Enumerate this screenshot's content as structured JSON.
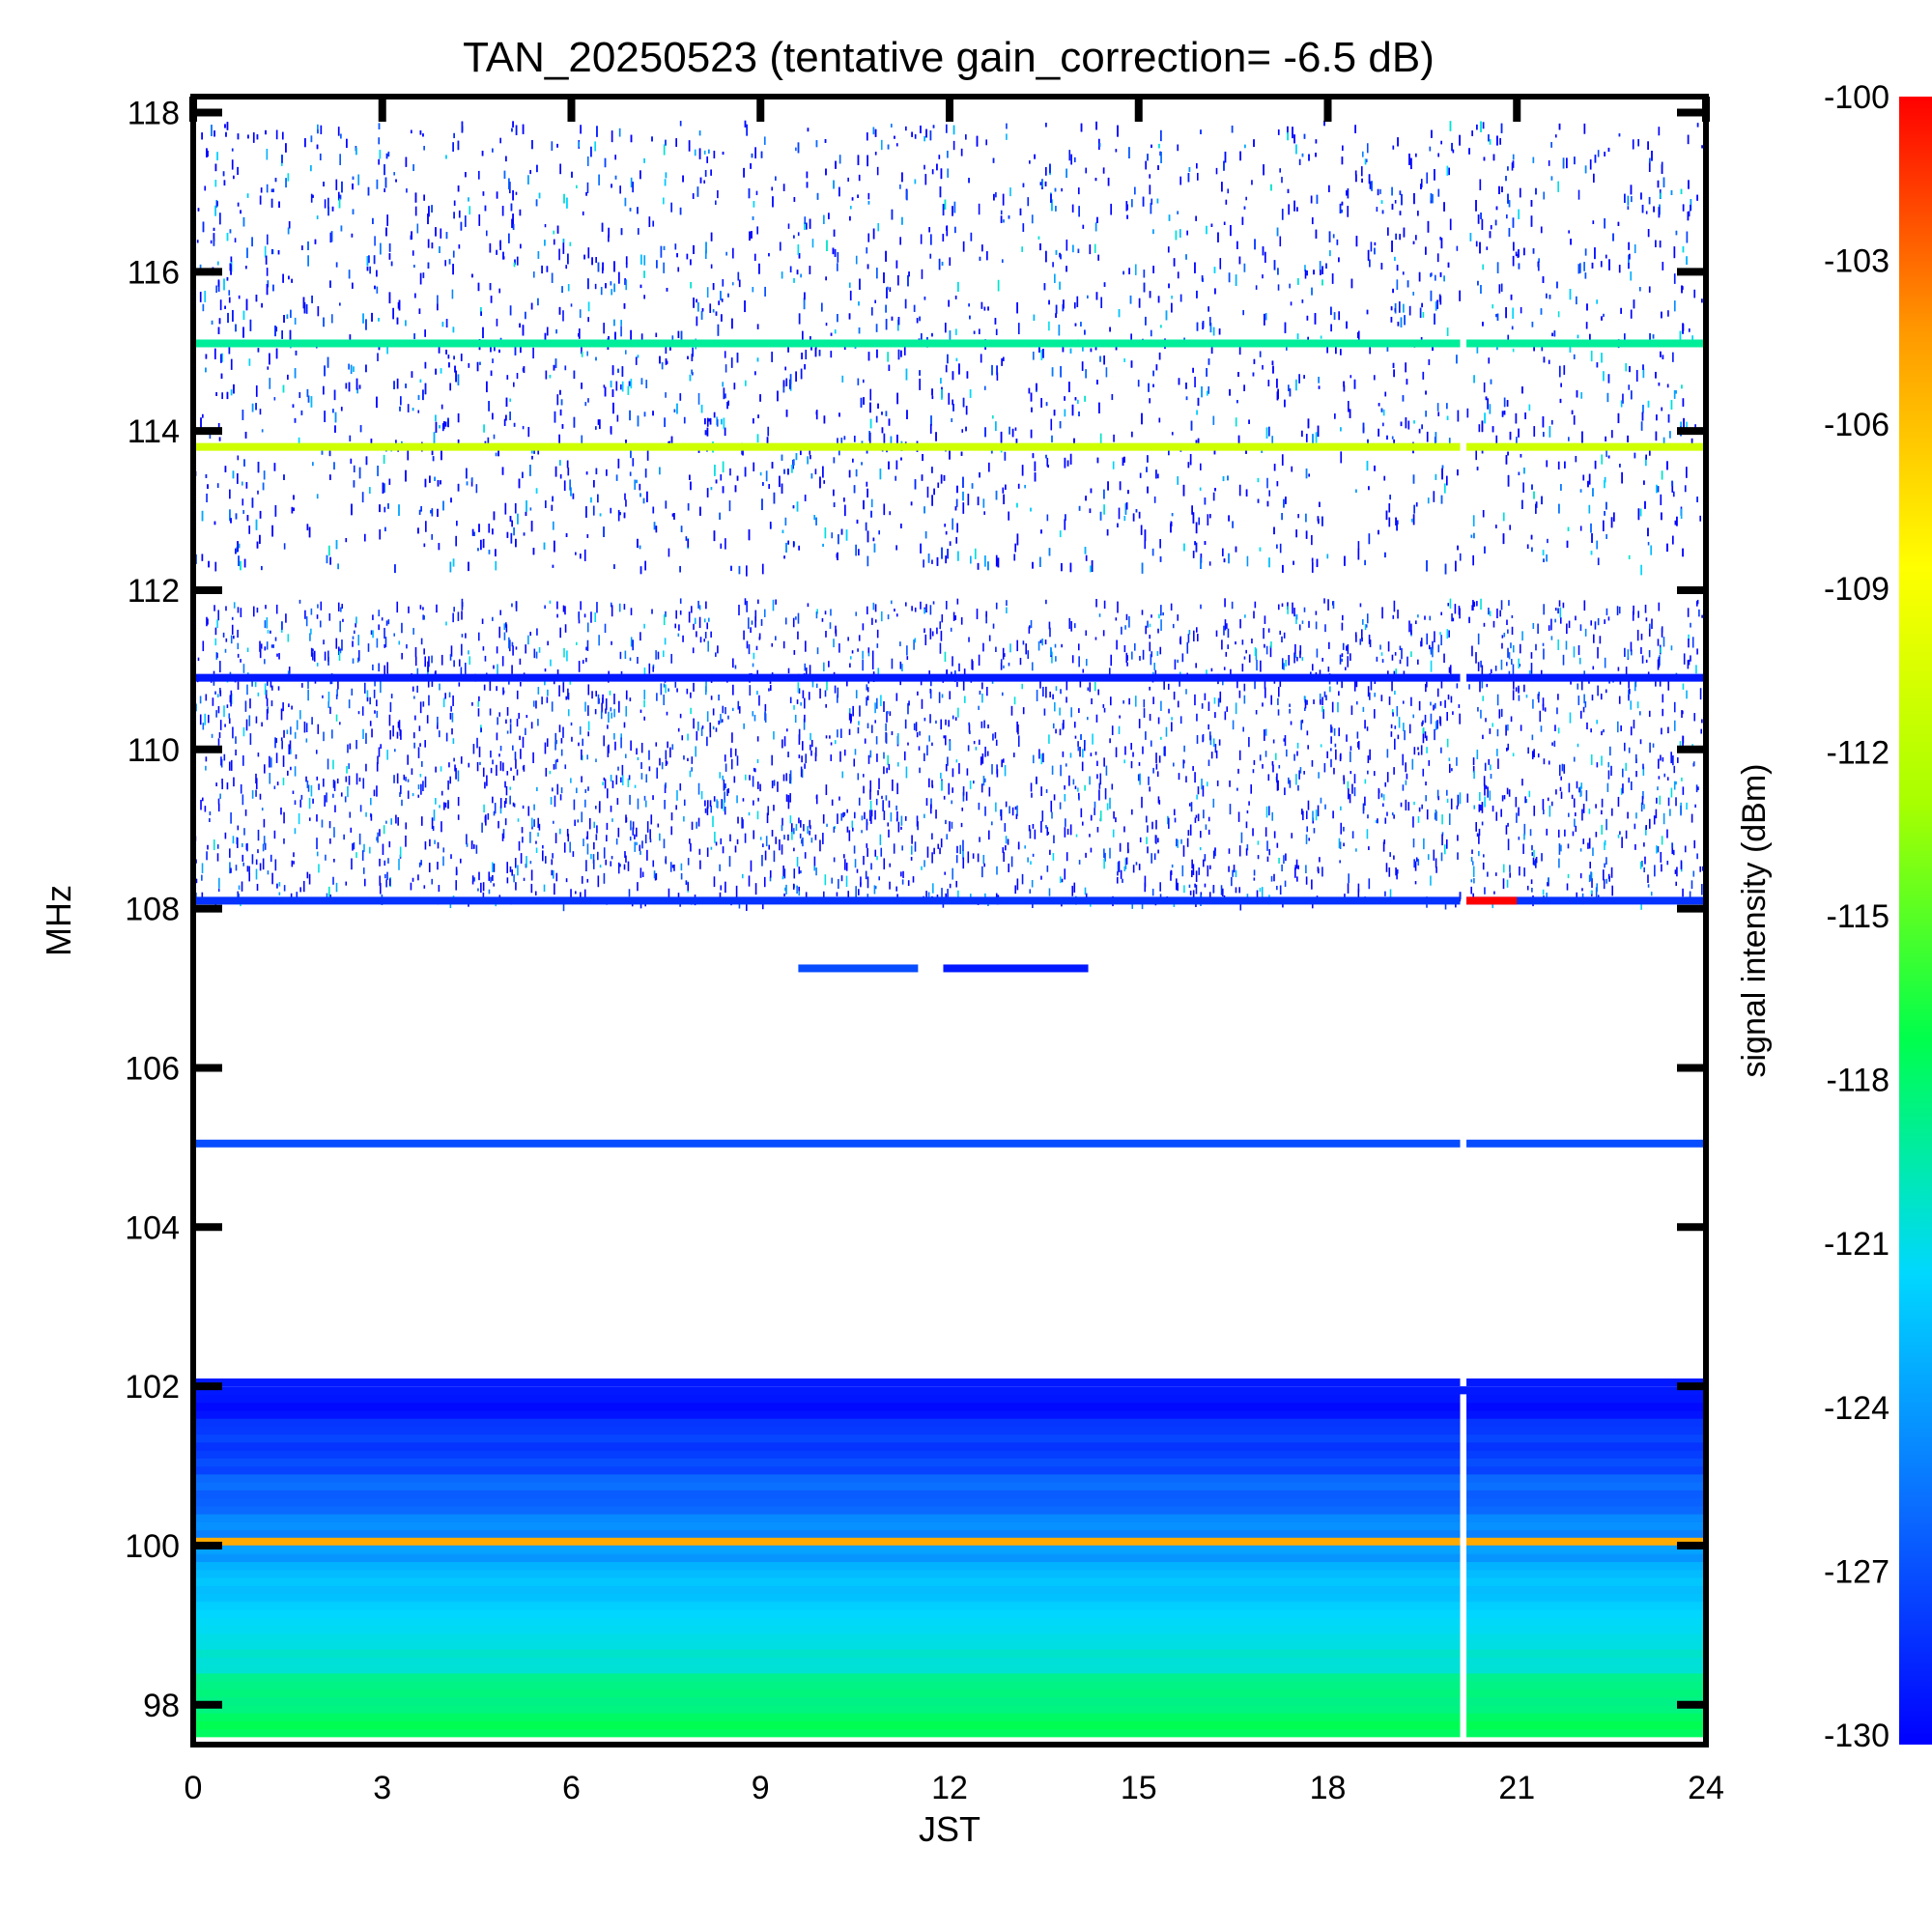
{
  "chart_data": {
    "type": "heatmap",
    "title": "TAN_20250523 (tentative gain_correction= -6.5 dB)",
    "xlabel": "JST",
    "ylabel": "MHz",
    "colorbar_label": "signal intensity (dBm)",
    "xlim": [
      0,
      24
    ],
    "ylim": [
      97.5,
      118.2
    ],
    "x_ticks": [
      0,
      3,
      6,
      9,
      12,
      15,
      18,
      21,
      24
    ],
    "x_tick_labels": [
      "0",
      "3",
      "6",
      "9",
      "12",
      "15",
      "18",
      "21",
      "24"
    ],
    "y_ticks": [
      98,
      100,
      102,
      104,
      106,
      108,
      110,
      112,
      114,
      116,
      118
    ],
    "y_tick_labels": [
      "98",
      "100",
      "102",
      "104",
      "106",
      "108",
      "110",
      "112",
      "114",
      "116",
      "118"
    ],
    "colorbar_range": [
      -130,
      -100
    ],
    "colorbar_ticks": [
      -100,
      -103,
      -106,
      -109,
      -112,
      -115,
      -118,
      -121,
      -124,
      -127,
      -130
    ],
    "colorbar_tick_labels": [
      "-100",
      "-103",
      "-106",
      "-109",
      "-112",
      "-115",
      "-118",
      "-121",
      "-124",
      "-127",
      "-130"
    ],
    "colormap": [
      "#0000ff",
      "#0a6cff",
      "#00d8ff",
      "#00ff4c",
      "#a8ff00",
      "#ffff00",
      "#ff9900",
      "#ff0000"
    ],
    "data_gap_jst": [
      20.1,
      20.2
    ],
    "scattered_noise_bands_mhz": [
      [
        108.1,
        111.9
      ],
      [
        112.3,
        117.9
      ]
    ],
    "dense_band_mhz": [
      97.6,
      101.9
    ],
    "bands": [
      {
        "freq_mhz": 115.1,
        "level_dbm": -119,
        "x_range": [
          0,
          24
        ]
      },
      {
        "freq_mhz": 113.8,
        "level_dbm": -111,
        "x_range": [
          0,
          24
        ]
      },
      {
        "freq_mhz": 110.9,
        "level_dbm": -129,
        "x_range": [
          0,
          24
        ]
      },
      {
        "freq_mhz": 108.1,
        "level_dbm": -128,
        "x_range": [
          0,
          24
        ]
      },
      {
        "freq_mhz": 108.1,
        "level_dbm": -100,
        "x_range": [
          20.2,
          21.0
        ]
      },
      {
        "freq_mhz": 107.25,
        "level_dbm": -127,
        "x_range": [
          9.6,
          11.5
        ]
      },
      {
        "freq_mhz": 107.25,
        "level_dbm": -129,
        "x_range": [
          11.9,
          14.2
        ]
      },
      {
        "freq_mhz": 105.05,
        "level_dbm": -127,
        "x_range": [
          0,
          24
        ]
      },
      {
        "freq_mhz": 102.05,
        "level_dbm": -129,
        "x_range": [
          0,
          24
        ]
      },
      {
        "freq_mhz": 100.05,
        "level_dbm": -105,
        "x_range": [
          0,
          24
        ]
      }
    ]
  }
}
